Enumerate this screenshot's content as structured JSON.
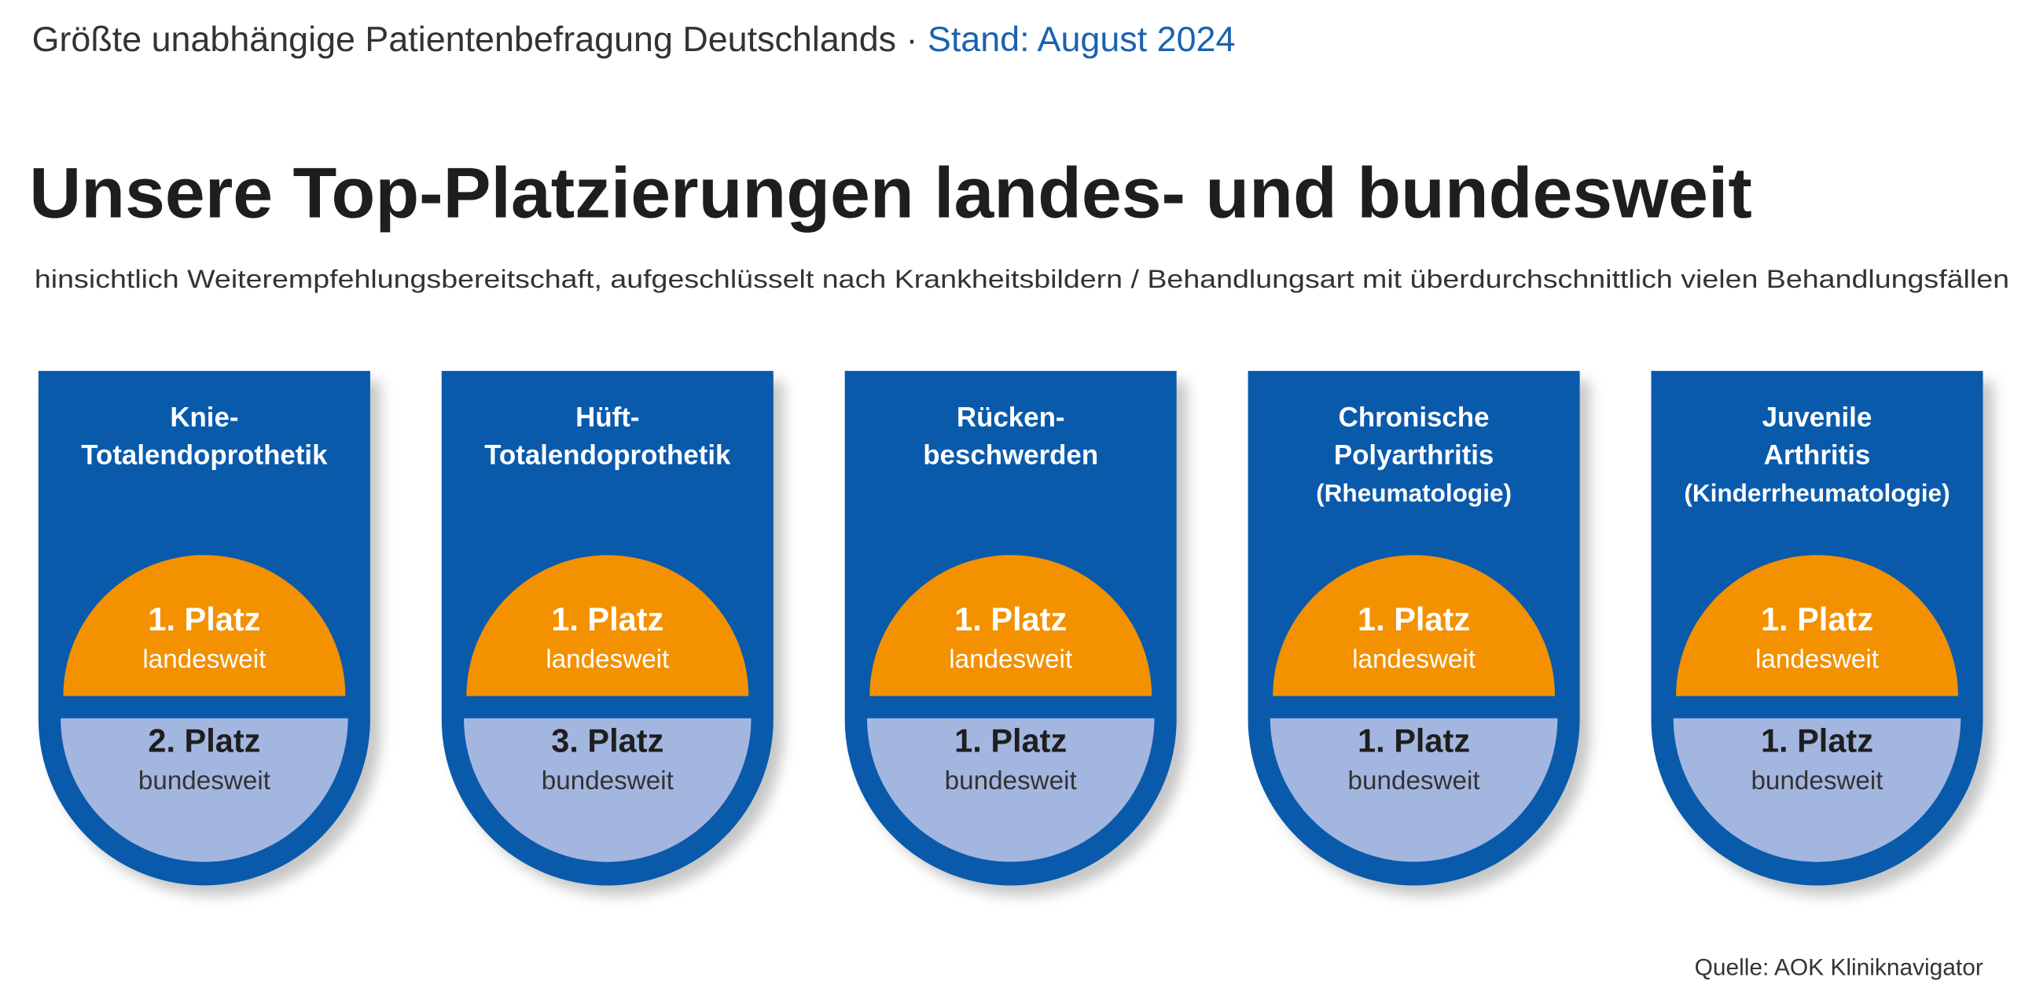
{
  "header": {
    "kicker": "Größte unabhängige Patientenbefragung Deutschlands ·",
    "date": "Stand: August 2024"
  },
  "title": "Unsere Top-Platzierungen landes- und bundesweit",
  "subtitle": "hinsichtlich Weiterempfehlungsbereitschaft, aufgeschlüsselt nach Krankheitsbildern / Behandlungsart mit überdurchschnittlich vielen Behandlungsfällen",
  "cards": [
    {
      "lines": [
        "Knie-",
        "Totalendoprothetik"
      ],
      "state_rank": "1. Platz",
      "state_label": "landesweit",
      "federal_rank": "2. Platz",
      "federal_label": "bundesweit"
    },
    {
      "lines": [
        "Hüft-",
        "Totalendoprothetik"
      ],
      "state_rank": "1. Platz",
      "state_label": "landesweit",
      "federal_rank": "3. Platz",
      "federal_label": "bundesweit"
    },
    {
      "lines": [
        "Rücken-",
        "beschwerden"
      ],
      "state_rank": "1. Platz",
      "state_label": "landesweit",
      "federal_rank": "1. Platz",
      "federal_label": "bundesweit"
    },
    {
      "lines": [
        "Chronische",
        "Polyarthritis",
        "(Rheumatologie)"
      ],
      "state_rank": "1. Platz",
      "state_label": "landesweit",
      "federal_rank": "1. Platz",
      "federal_label": "bundesweit"
    },
    {
      "lines": [
        "Juvenile",
        "Arthritis",
        "(Kinderrheumatologie)"
      ],
      "state_rank": "1. Platz",
      "state_label": "landesweit",
      "federal_rank": "1. Platz",
      "federal_label": "bundesweit"
    }
  ],
  "source": "Quelle: AOK Kliniknavigator"
}
